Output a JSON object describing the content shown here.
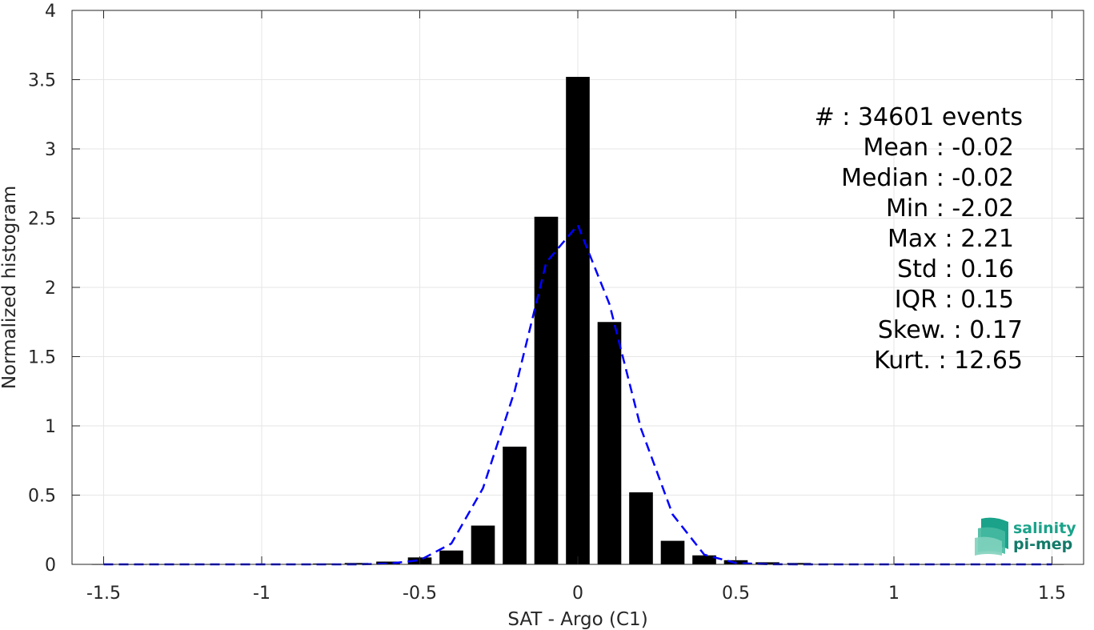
{
  "chart_data": {
    "type": "bar",
    "xlabel": "SAT - Argo (C1)",
    "ylabel": "Normalized histogram",
    "xlim": [
      -1.6,
      1.6
    ],
    "ylim": [
      0,
      4
    ],
    "grid": true,
    "x_ticks": [
      -1.5,
      -1,
      -0.5,
      0,
      0.5,
      1,
      1.5
    ],
    "x_tick_labels": [
      "-1.5",
      "-1",
      "-0.5",
      "0",
      "0.5",
      "1",
      "1.5"
    ],
    "y_ticks": [
      0,
      0.5,
      1,
      1.5,
      2,
      2.5,
      3,
      3.5,
      4
    ],
    "y_tick_labels": [
      "0",
      "0.5",
      "1",
      "1.5",
      "2",
      "2.5",
      "3",
      "3.5",
      "4"
    ],
    "bar_width": 0.075,
    "bars": {
      "x": [
        -1.5,
        -1.4,
        -1.3,
        -1.2,
        -1.1,
        -1.0,
        -0.9,
        -0.8,
        -0.7,
        -0.6,
        -0.5,
        -0.4,
        -0.3,
        -0.2,
        -0.1,
        0.0,
        0.1,
        0.2,
        0.3,
        0.4,
        0.5,
        0.6,
        0.7,
        0.8,
        0.9,
        1.0,
        1.1,
        1.2,
        1.3,
        1.4,
        1.5
      ],
      "values": [
        0.001,
        0.001,
        0.001,
        0.001,
        0.002,
        0.002,
        0.003,
        0.006,
        0.01,
        0.02,
        0.05,
        0.1,
        0.28,
        0.85,
        2.51,
        3.52,
        1.75,
        0.52,
        0.17,
        0.065,
        0.03,
        0.015,
        0.01,
        0.005,
        0.003,
        0.002,
        0.001,
        0.001,
        0.001,
        0.001,
        0.001
      ],
      "color": "#000000"
    },
    "series": [
      {
        "type": "line",
        "style": "dashed",
        "color": "#0000ff",
        "x": [
          -1.5,
          -1.4,
          -1.3,
          -1.2,
          -1.1,
          -1.0,
          -0.9,
          -0.8,
          -0.7,
          -0.6,
          -0.5,
          -0.4,
          -0.3,
          -0.2,
          -0.1,
          0.0,
          0.1,
          0.2,
          0.3,
          0.4,
          0.5,
          0.6,
          0.7,
          0.8,
          0.9,
          1.0,
          1.1,
          1.2,
          1.3,
          1.4,
          1.5
        ],
        "values": [
          0,
          0,
          0,
          0,
          0,
          0,
          0,
          0,
          0,
          0.005,
          0.03,
          0.15,
          0.55,
          1.25,
          2.18,
          2.45,
          1.88,
          0.98,
          0.36,
          0.07,
          0.01,
          0.001,
          0,
          0,
          0,
          0,
          0,
          0,
          0,
          0,
          0
        ]
      }
    ],
    "annotations": [
      "#  : 34601 events",
      "Mean : -0.02",
      "Median : -0.02",
      "Min : -2.02",
      "Max : 2.21",
      "Std : 0.16",
      "IQR : 0.15",
      "Skew. : 0.17",
      "Kurt. : 12.65"
    ]
  },
  "logo": {
    "line1": "salinity",
    "line2": "pi-mep",
    "color1": "#1aa38a",
    "color2": "#137a69"
  }
}
